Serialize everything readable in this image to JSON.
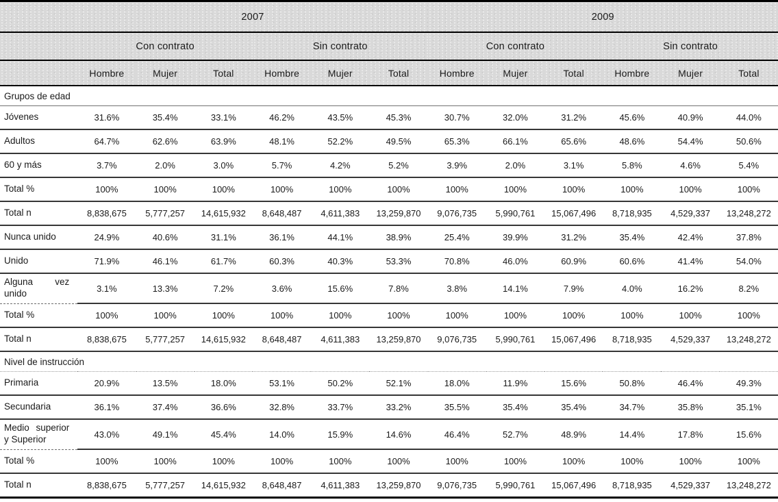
{
  "colors": {
    "header_band": "#d9d9d9",
    "rule_heavy": "#000000",
    "rule_row": "#363636",
    "text": "#1a1a1a"
  },
  "table": {
    "years": [
      "2007",
      "2009"
    ],
    "contract_headers": [
      "Con contrato",
      "Sin contrato",
      "Con contrato",
      "Sin contrato"
    ],
    "sex_headers": [
      "Hombre",
      "Mujer",
      "Total",
      "Hombre",
      "Mujer",
      "Total",
      "Hombre",
      "Mujer",
      "Total",
      "Hombre",
      "Mujer",
      "Total"
    ],
    "rows": [
      {
        "type": "section",
        "label": "Grupos de edad"
      },
      {
        "type": "data",
        "label": "Jóvenes",
        "values": [
          "31.6%",
          "35.4%",
          "33.1%",
          "46.2%",
          "43.5%",
          "45.3%",
          "30.7%",
          "32.0%",
          "31.2%",
          "45.6%",
          "40.9%",
          "44.0%"
        ]
      },
      {
        "type": "data",
        "label": "Adultos",
        "values": [
          "64.7%",
          "62.6%",
          "63.9%",
          "48.1%",
          "52.2%",
          "49.5%",
          "65.3%",
          "66.1%",
          "65.6%",
          "48.6%",
          "54.4%",
          "50.6%"
        ]
      },
      {
        "type": "data",
        "label": "60 y más",
        "values": [
          "3.7%",
          "2.0%",
          "3.0%",
          "5.7%",
          "4.2%",
          "5.2%",
          "3.9%",
          "2.0%",
          "3.1%",
          "5.8%",
          "4.6%",
          "5.4%"
        ]
      },
      {
        "type": "data",
        "label": "Total %",
        "values": [
          "100%",
          "100%",
          "100%",
          "100%",
          "100%",
          "100%",
          "100%",
          "100%",
          "100%",
          "100%",
          "100%",
          "100%"
        ]
      },
      {
        "type": "data",
        "label": "Total n",
        "values": [
          "8,838,675",
          "5,777,257",
          "14,615,932",
          "8,648,487",
          "4,611,383",
          "13,259,870",
          "9,076,735",
          "5,990,761",
          "15,067,496",
          "8,718,935",
          "4,529,337",
          "13,248,272"
        ]
      },
      {
        "type": "data",
        "label": "Nunca unido",
        "values": [
          "24.9%",
          "40.6%",
          "31.1%",
          "36.1%",
          "44.1%",
          "38.9%",
          "25.4%",
          "39.9%",
          "31.2%",
          "35.4%",
          "42.4%",
          "37.8%"
        ]
      },
      {
        "type": "data",
        "label": "Unido",
        "values": [
          "71.9%",
          "46.1%",
          "61.7%",
          "60.3%",
          "40.3%",
          "53.3%",
          "70.8%",
          "46.0%",
          "60.9%",
          "60.6%",
          "41.4%",
          "54.0%"
        ]
      },
      {
        "type": "data",
        "label": "Alguna vez unido",
        "label_lines": [
          "Alguna vez",
          "unido"
        ],
        "values": [
          "3.1%",
          "13.3%",
          "7.2%",
          "3.6%",
          "15.6%",
          "7.8%",
          "3.8%",
          "14.1%",
          "7.9%",
          "4.0%",
          "16.2%",
          "8.2%"
        ]
      },
      {
        "type": "data",
        "label": "Total %",
        "values": [
          "100%",
          "100%",
          "100%",
          "100%",
          "100%",
          "100%",
          "100%",
          "100%",
          "100%",
          "100%",
          "100%",
          "100%"
        ]
      },
      {
        "type": "data",
        "label": "Total n",
        "values": [
          "8,838,675",
          "5,777,257",
          "14,615,932",
          "8,648,487",
          "4,611,383",
          "13,259,870",
          "9,076,735",
          "5,990,761",
          "15,067,496",
          "8,718,935",
          "4,529,337",
          "13,248,272"
        ]
      },
      {
        "type": "section",
        "label": "Nivel de instrucción"
      },
      {
        "type": "data",
        "label": "Primaria",
        "values": [
          "20.9%",
          "13.5%",
          "18.0%",
          "53.1%",
          "50.2%",
          "52.1%",
          "18.0%",
          "11.9%",
          "15.6%",
          "50.8%",
          "46.4%",
          "49.3%"
        ]
      },
      {
        "type": "data",
        "label": "Secundaria",
        "values": [
          "36.1%",
          "37.4%",
          "36.6%",
          "32.8%",
          "33.7%",
          "33.2%",
          "35.5%",
          "35.4%",
          "35.4%",
          "34.7%",
          "35.8%",
          "35.1%"
        ]
      },
      {
        "type": "data",
        "label": "Medio superior y Superior",
        "label_lines": [
          "Medio superior",
          "y Superior"
        ],
        "values": [
          "43.0%",
          "49.1%",
          "45.4%",
          "14.0%",
          "15.9%",
          "14.6%",
          "46.4%",
          "52.7%",
          "48.9%",
          "14.4%",
          "17.8%",
          "15.6%"
        ]
      },
      {
        "type": "data",
        "label": "Total %",
        "values": [
          "100%",
          "100%",
          "100%",
          "100%",
          "100%",
          "100%",
          "100%",
          "100%",
          "100%",
          "100%",
          "100%",
          "100%"
        ]
      },
      {
        "type": "data",
        "label": "Total n",
        "values": [
          "8,838,675",
          "5,777,257",
          "14,615,932",
          "8,648,487",
          "4,611,383",
          "13,259,870",
          "9,076,735",
          "5,990,761",
          "15,067,496",
          "8,718,935",
          "4,529,337",
          "13,248,272"
        ]
      }
    ]
  }
}
